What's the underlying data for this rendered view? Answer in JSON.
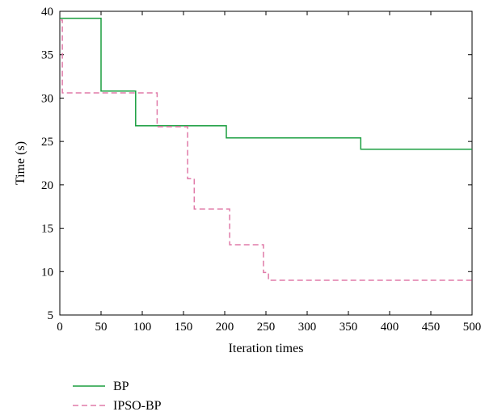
{
  "chart_data": {
    "type": "line",
    "title": "",
    "xlabel": "Iteration times",
    "ylabel": "Time (s)",
    "xlim": [
      0,
      500
    ],
    "ylim": [
      5,
      40
    ],
    "xticks": [
      "0",
      "50",
      "100",
      "150",
      "200",
      "250",
      "300",
      "350",
      "400",
      "450",
      "500"
    ],
    "yticks": [
      "5",
      "10",
      "15",
      "20",
      "25",
      "30",
      "35",
      "40"
    ],
    "grid": false,
    "legend_position": "bottom-left, below plot",
    "series": [
      {
        "name": "BP",
        "color": "#1a9e3f",
        "line_style": "solid",
        "step": true,
        "x": [
          0,
          50,
          92,
          202,
          365,
          500
        ],
        "y": [
          39.2,
          30.8,
          26.8,
          25.4,
          24.1,
          24.1
        ]
      },
      {
        "name": "IPSO-BP",
        "color": "#e07aa8",
        "line_style": "dashed",
        "step": true,
        "x": [
          0,
          3,
          118,
          155,
          163,
          206,
          247,
          253,
          500
        ],
        "y": [
          39.0,
          30.6,
          26.7,
          20.7,
          17.2,
          13.1,
          9.9,
          9.0,
          9.0
        ]
      }
    ]
  }
}
